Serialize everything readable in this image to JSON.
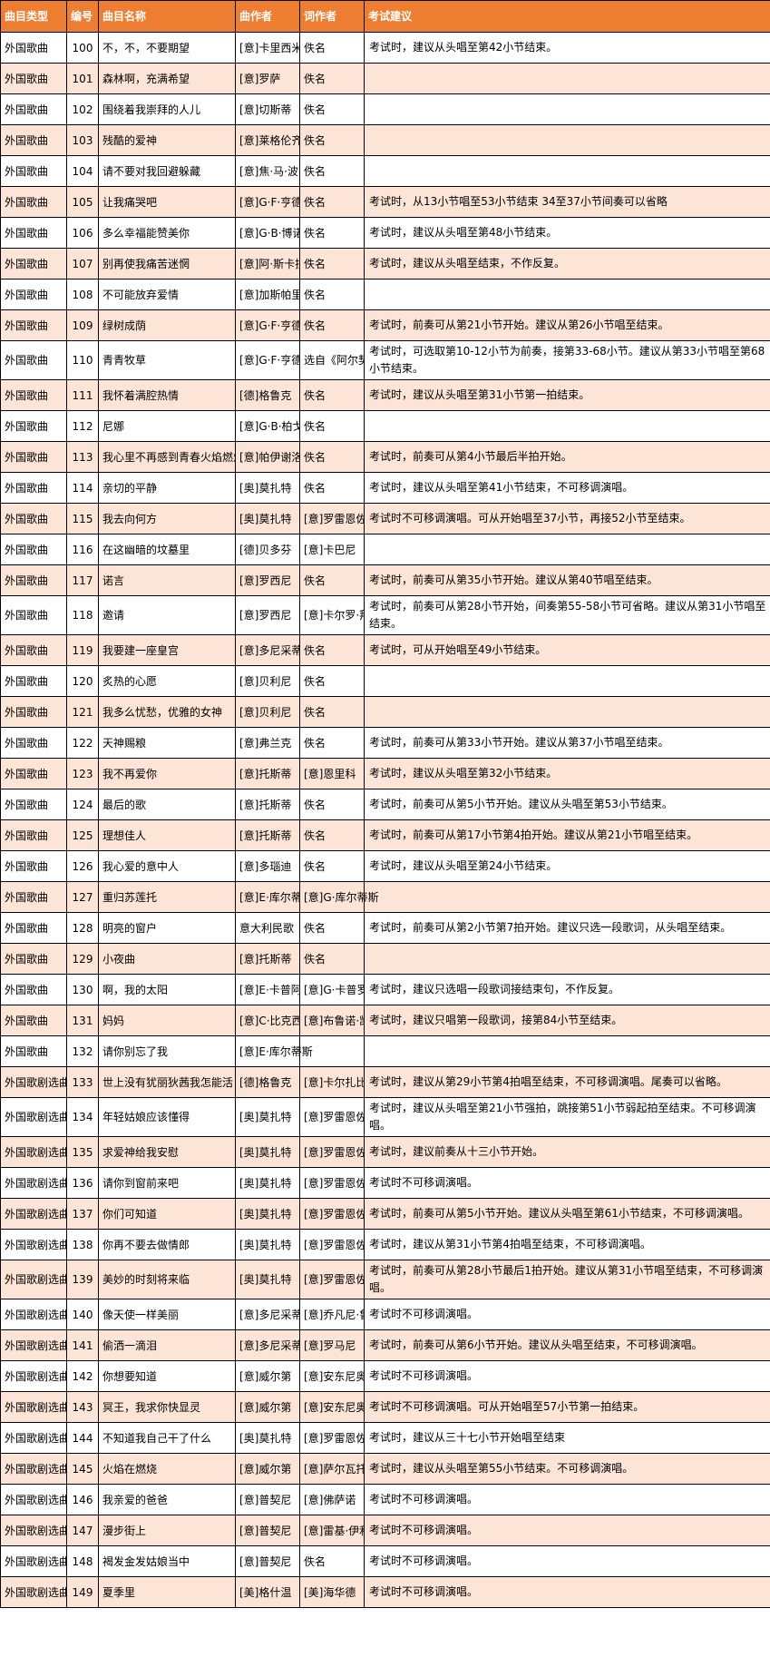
{
  "colors": {
    "header_bg": "#ED7D31",
    "header_text": "#FFFFFF",
    "stripe_bg": "#FCE4D6",
    "row_bg": "#FFFFFF",
    "border": "#000000",
    "text": "#000000"
  },
  "table": {
    "headers": [
      "曲目类型",
      "编号",
      "曲目名称",
      "曲作者",
      "词作者",
      "考试建议"
    ],
    "rows": [
      {
        "type": "外国歌曲",
        "number": "100",
        "name": "不，不，不要期望",
        "composer": "[意]卡里西米",
        "lyricist": "佚名",
        "suggestion": "考试时，建议从头唱至第42小节结束。"
      },
      {
        "type": "外国歌曲",
        "number": "101",
        "name": "森林啊，充满希望",
        "composer": "[意]罗萨",
        "lyricist": "佚名",
        "suggestion": ""
      },
      {
        "type": "外国歌曲",
        "number": "102",
        "name": "围绕着我崇拜的人儿",
        "composer": "[意]切斯蒂",
        "lyricist": "佚名",
        "suggestion": ""
      },
      {
        "type": "外国歌曲",
        "number": "103",
        "name": "残酷的爱神",
        "composer": "[意]莱格伦齐",
        "lyricist": "佚名",
        "suggestion": ""
      },
      {
        "type": "外国歌曲",
        "number": "104",
        "name": "请不要对我回避躲藏",
        "composer": "[意]焦·马·波农奇尼",
        "lyricist": "佚名",
        "suggestion": ""
      },
      {
        "type": "外国歌曲",
        "number": "105",
        "name": "让我痛哭吧",
        "composer": "[意]G·F·亨德尔",
        "lyricist": "佚名",
        "suggestion": "考试时，从13小节唱至53小节结束 34至37小节间奏可以省略"
      },
      {
        "type": "外国歌曲",
        "number": "106",
        "name": "多么幸福能赞美你",
        "composer": "[意]G·B·博诺尼",
        "lyricist": "佚名",
        "suggestion": "考试时，建议从头唱至第48小节结束。"
      },
      {
        "type": "外国歌曲",
        "number": "107",
        "name": "别再使我痛苦迷惘",
        "composer": "[意]阿·斯卡拉蒂",
        "lyricist": "佚名",
        "suggestion": "考试时，建议从头唱至结束，不作反复。"
      },
      {
        "type": "外国歌曲",
        "number": "108",
        "name": "不可能放弃爱情",
        "composer": "[意]加斯帕里尼",
        "lyricist": "佚名",
        "suggestion": ""
      },
      {
        "type": "外国歌曲",
        "number": "109",
        "name": "绿树成荫",
        "composer": "[意]G·F·亨德尔",
        "lyricist": "佚名",
        "suggestion": "考试时，前奏可从第21小节开始。建议从第26小节唱至结束。"
      },
      {
        "type": "外国歌曲",
        "number": "110",
        "name": "青青牧草",
        "composer": "[意]G·F·亨德尔",
        "lyricist": "选自《阿尔契那》",
        "suggestion": "考试时，可选取第10-12小节为前奏，接第33-68小节。建议从第33小节唱至第68小节结束。"
      },
      {
        "type": "外国歌曲",
        "number": "111",
        "name": "我怀着满腔热情",
        "composer": "[德]格鲁克",
        "lyricist": "佚名",
        "suggestion": "考试时，建议从头唱至第31小节第一拍结束。"
      },
      {
        "type": "外国歌曲",
        "number": "112",
        "name": "尼娜",
        "composer": "[意]G·B·柏戈莱西",
        "lyricist": "佚名",
        "suggestion": ""
      },
      {
        "type": "外国歌曲",
        "number": "113",
        "name": "我心里不再感到青春火焰燃烧",
        "composer": "[意]帕伊谢洛",
        "lyricist": "佚名",
        "suggestion": "考试时，前奏可从第4小节最后半拍开始。"
      },
      {
        "type": "外国歌曲",
        "number": "114",
        "name": "亲切的平静",
        "composer": "[奥]莫扎特",
        "lyricist": "佚名",
        "suggestion": "考试时，建议从头唱至第41小节结束，不可移调演唱。"
      },
      {
        "type": "外国歌曲",
        "number": "115",
        "name": "我去向何方",
        "composer": "[奥]莫扎特",
        "lyricist": "[意]罗雷恩佐",
        "suggestion": "考试时不可移调演唱。可从开始唱至37小节，再接52小节至结束。"
      },
      {
        "type": "外国歌曲",
        "number": "116",
        "name": "在这幽暗的坟墓里",
        "composer": "[德]贝多芬",
        "lyricist": "[意]卡巴尼",
        "suggestion": ""
      },
      {
        "type": "外国歌曲",
        "number": "117",
        "name": "诺言",
        "composer": "[意]罗西尼",
        "lyricist": "佚名",
        "suggestion": "考试时，前奏可从第35小节开始。建议从第40节唱至结束。"
      },
      {
        "type": "外国歌曲",
        "number": "118",
        "name": "邀请",
        "composer": "[意]罗西尼",
        "lyricist": "[意]卡尔罗·拜波利",
        "suggestion": "考试时，前奏可从第28小节开始，间奏第55-58小节可省略。建议从第31小节唱至结束。"
      },
      {
        "type": "外国歌曲",
        "number": "119",
        "name": "我要建一座皇宫",
        "composer": "[意]多尼采蒂",
        "lyricist": "佚名",
        "suggestion": "考试时，可从开始唱至49小节结束。"
      },
      {
        "type": "外国歌曲",
        "number": "120",
        "name": "炙热的心愿",
        "composer": "[意]贝利尼",
        "lyricist": "佚名",
        "suggestion": ""
      },
      {
        "type": "外国歌曲",
        "number": "121",
        "name": "我多么忧愁，优雅的女神",
        "composer": "[意]贝利尼",
        "lyricist": "佚名",
        "suggestion": ""
      },
      {
        "type": "外国歌曲",
        "number": "122",
        "name": "天神赐粮",
        "composer": "[意]弗兰克",
        "lyricist": "佚名",
        "suggestion": "考试时，前奏可从第33小节开始。建议从第37小节唱至结束。"
      },
      {
        "type": "外国歌曲",
        "number": "123",
        "name": "我不再爱你",
        "composer": "[意]托斯蒂",
        "lyricist": "[意]恩里科",
        "suggestion": "考试时，建议从头唱至第32小节结束。"
      },
      {
        "type": "外国歌曲",
        "number": "124",
        "name": "最后的歌",
        "composer": "[意]托斯蒂",
        "lyricist": "佚名",
        "suggestion": "考试时，前奏可从第5小节开始。建议从头唱至第53小节结束。"
      },
      {
        "type": "外国歌曲",
        "number": "125",
        "name": "理想佳人",
        "composer": "[意]托斯蒂",
        "lyricist": "佚名",
        "suggestion": "考试时，前奏可从第17小节第4拍开始。建议从第21小节唱至结束。"
      },
      {
        "type": "外国歌曲",
        "number": "126",
        "name": "我心爱的意中人",
        "composer": "[意]多瑙迪",
        "lyricist": "佚名",
        "suggestion": "考试时，建议从头唱至第24小节结束。"
      },
      {
        "type": "外国歌曲",
        "number": "127",
        "name": "重归苏莲托",
        "composer": "[意]E·库尔蒂斯",
        "lyricist": "[意]G·库尔蒂斯",
        "suggestion": ""
      },
      {
        "type": "外国歌曲",
        "number": "128",
        "name": "明亮的窗户",
        "composer": "意大利民歌",
        "lyricist": "佚名",
        "suggestion": "考试时，前奏可从第2小节第7拍开始。建议只选一段歌词，从头唱至结束。"
      },
      {
        "type": "外国歌曲",
        "number": "129",
        "name": "小夜曲",
        "composer": "[意]托斯蒂",
        "lyricist": "佚名",
        "suggestion": ""
      },
      {
        "type": "外国歌曲",
        "number": "130",
        "name": "啊，我的太阳",
        "composer": "[意]E·卡普阿",
        "lyricist": "[意]G·卡普罗",
        "suggestion": "考试时，建议只选唱一段歌词接结束句，不作反复。"
      },
      {
        "type": "外国歌曲",
        "number": "131",
        "name": "妈妈",
        "composer": "[意]C·比克西奥",
        "lyricist": "[意]布鲁诺·凯鲁比尼",
        "suggestion": "考试时，建议只唱第一段歌词，接第84小节至结束。"
      },
      {
        "type": "外国歌曲",
        "number": "132",
        "name": "请你别忘了我",
        "composer": "[意]E·库尔蒂斯",
        "lyricist": "",
        "suggestion": ""
      },
      {
        "type": "外国歌剧选曲",
        "number": "133",
        "name": "世上没有犹丽狄茜我怎能活",
        "composer": "[德]格鲁克",
        "lyricist": "[意]卡尔扎比吉",
        "suggestion": "考试时，建议从第29小节第4拍唱至结束，不可移调演唱。尾奏可以省略。"
      },
      {
        "type": "外国歌剧选曲",
        "number": "134",
        "name": "年轻姑娘应该懂得",
        "composer": "[奥]莫扎特",
        "lyricist": "[意]罗雷恩佐",
        "suggestion": "考试时，建议从头唱至第21小节强拍，跳接第51小节弱起拍至结束。不可移调演唱。"
      },
      {
        "type": "外国歌剧选曲",
        "number": "135",
        "name": "求爱神给我安慰",
        "composer": "[奥]莫扎特",
        "lyricist": "[意]罗雷恩佐",
        "suggestion": "考试时，建议前奏从十三小节开始。"
      },
      {
        "type": "外国歌剧选曲",
        "number": "136",
        "name": "请你到窗前来吧",
        "composer": "[奥]莫扎特",
        "lyricist": "[意]罗雷恩佐",
        "suggestion": "考试时不可移调演唱。"
      },
      {
        "type": "外国歌剧选曲",
        "number": "137",
        "name": "你们可知道",
        "composer": "[奥]莫扎特",
        "lyricist": "[意]罗雷恩佐",
        "suggestion": "考试时，前奏可从第5小节开始。建议从头唱至第61小节结束，不可移调演唱。"
      },
      {
        "type": "外国歌剧选曲",
        "number": "138",
        "name": "你再不要去做情郎",
        "composer": "[奥]莫扎特",
        "lyricist": "[意]罗雷恩佐",
        "suggestion": "考试时，建议从第31小节第4拍唱至结束，不可移调演唱。"
      },
      {
        "type": "外国歌剧选曲",
        "number": "139",
        "name": "美妙的时刻将来临",
        "composer": "[奥]莫扎特",
        "lyricist": "[意]罗雷恩佐",
        "suggestion": "考试时，前奏可从第28小节最后1拍开始。建议从第31小节唱至结束，不可移调演唱。"
      },
      {
        "type": "外国歌剧选曲",
        "number": "140",
        "name": "像天使一样美丽",
        "composer": "[意]多尼采蒂",
        "lyricist": "[意]乔凡尼·鲁菲尼",
        "suggestion": "考试时不可移调演唱。"
      },
      {
        "type": "外国歌剧选曲",
        "number": "141",
        "name": "偷洒一滴泪",
        "composer": "[意]多尼采蒂",
        "lyricist": "[意]罗马尼",
        "suggestion": "考试时，前奏可从第6小节开始。建议从头唱至结束，不可移调演唱。"
      },
      {
        "type": "外国歌剧选曲",
        "number": "142",
        "name": "你想要知道",
        "composer": "[意]威尔第",
        "lyricist": "[意]安东尼奥",
        "suggestion": "考试时不可移调演唱。"
      },
      {
        "type": "外国歌剧选曲",
        "number": "143",
        "name": "冥王，我求你快显灵",
        "composer": "[意]威尔第",
        "lyricist": "[意]安东尼奥",
        "suggestion": "考试时不可移调演唱。可从开始唱至57小节第一拍结束。"
      },
      {
        "type": "外国歌剧选曲",
        "number": "144",
        "name": "不知道我自己干了什么",
        "composer": "[奥]莫扎特",
        "lyricist": "[意]罗雷恩佐",
        "suggestion": "考试时，建议从三十七小节开始唱至结束"
      },
      {
        "type": "外国歌剧选曲",
        "number": "145",
        "name": "火焰在燃烧",
        "composer": "[意]威尔第",
        "lyricist": "[意]萨尔瓦托雷",
        "suggestion": "考试时，建议从头唱至第55小节结束。不可移调演唱。"
      },
      {
        "type": "外国歌剧选曲",
        "number": "146",
        "name": "我亲爱的爸爸",
        "composer": "[意]普契尼",
        "lyricist": "[意]佛萨诺",
        "suggestion": "考试时不可移调演唱。"
      },
      {
        "type": "外国歌剧选曲",
        "number": "147",
        "name": "漫步街上",
        "composer": "[意]普契尼",
        "lyricist": "[意]雷基·伊利卡",
        "suggestion": "考试时不可移调演唱。"
      },
      {
        "type": "外国歌剧选曲",
        "number": "148",
        "name": "褐发金发姑娘当中",
        "composer": "[意]普契尼",
        "lyricist": "佚名",
        "suggestion": "考试时不可移调演唱。"
      },
      {
        "type": "外国歌剧选曲",
        "number": "149",
        "name": "夏季里",
        "composer": "[美]格什温",
        "lyricist": "[美]海华德",
        "suggestion": "考试时不可移调演唱。"
      }
    ]
  }
}
